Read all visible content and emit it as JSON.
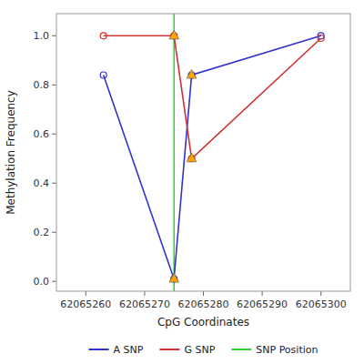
{
  "chart_data": {
    "type": "line",
    "xlabel": "CpG Coordinates",
    "ylabel": "Methylation Frequency",
    "x": [
      62065263,
      62065275,
      62065278,
      62065300
    ],
    "series": [
      {
        "name": "A SNP",
        "color": "#3333cc",
        "marker": "circle",
        "line_style": "solid",
        "values": [
          0.84,
          0.01,
          0.84,
          1.0
        ]
      },
      {
        "name": "G SNP",
        "color": "#cc3333",
        "marker": "circle",
        "line_style": "solid",
        "values": [
          1.0,
          1.0,
          0.5,
          0.99
        ]
      },
      {
        "name": "SNP Position",
        "type": "vline",
        "color": "#33cc33",
        "line_style": "solid",
        "x": [
          62065275
        ]
      },
      {
        "type": "scatter",
        "marker": "triangle",
        "color": "#FFA500",
        "x": [
          62065275,
          62065275,
          62065278,
          62065278
        ],
        "values": [
          1.0,
          0.01,
          0.84,
          0.5
        ]
      }
    ],
    "xlim": [
      62065255,
      62065305
    ],
    "ylim": [
      -0.04,
      1.09
    ],
    "xticks": [
      62065260,
      62065270,
      62065280,
      62065290,
      62065300
    ],
    "yticks": [
      {
        "value": 0.0,
        "label": "0.0"
      },
      0.2,
      0.4,
      0.6,
      0.8,
      {
        "value": 1.0,
        "label": "1.0"
      }
    ],
    "grid": false,
    "legend": "bottom"
  }
}
